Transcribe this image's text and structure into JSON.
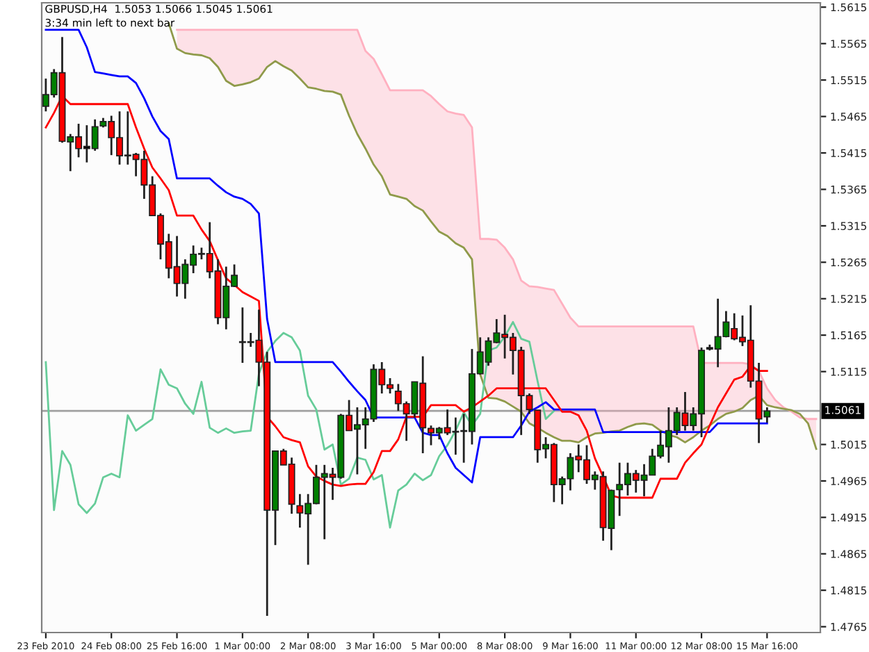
{
  "chart_data": {
    "type": "candlestick",
    "title": "GBPUSD,H4  1.5053 1.5066 1.5045 1.5061",
    "subtitle": "3:34 min left to next bar",
    "categories": [
      "23 Feb 2010",
      null,
      null,
      null,
      null,
      null,
      null,
      null,
      "24 Feb 08:00",
      null,
      null,
      null,
      null,
      null,
      null,
      null,
      "25 Feb 16:00",
      null,
      null,
      null,
      null,
      null,
      null,
      null,
      "1 Mar 00:00",
      null,
      null,
      null,
      null,
      null,
      null,
      null,
      "2 Mar 08:00",
      null,
      null,
      null,
      null,
      null,
      null,
      null,
      "3 Mar 16:00",
      null,
      null,
      null,
      null,
      null,
      null,
      null,
      "5 Mar 00:00",
      null,
      null,
      null,
      null,
      null,
      null,
      null,
      "8 Mar 08:00",
      null,
      null,
      null,
      null,
      null,
      null,
      null,
      "9 Mar 16:00",
      null,
      null,
      null,
      null,
      null,
      null,
      null,
      "11 Mar 00:00",
      null,
      null,
      null,
      null,
      null,
      null,
      null,
      "12 Mar 08:00",
      null,
      null,
      null,
      null,
      null,
      null,
      null,
      "15 Mar 16:00",
      null,
      null,
      null,
      null,
      null,
      null
    ],
    "ylim": [
      1.4757,
      1.5621
    ],
    "yticks": [
      1.4765,
      1.4815,
      1.4865,
      1.4915,
      1.4965,
      1.5015,
      1.5115,
      1.5165,
      1.5215,
      1.5265,
      1.5315,
      1.5365,
      1.5415,
      1.5465,
      1.5515,
      1.5565,
      1.5615
    ],
    "ref_lines": [
      {
        "axis": "y",
        "value": 1.5061,
        "label": "1.5061",
        "color": "#a0a0a0"
      }
    ],
    "series": [
      {
        "type": "line",
        "color": "#ffb0c0",
        "values": [
          null,
          null,
          null,
          null,
          null,
          null,
          null,
          null,
          null,
          null,
          null,
          null,
          null,
          null,
          null,
          null,
          1.5584,
          1.5584,
          1.5584,
          1.5584,
          1.5584,
          1.5584,
          1.5584,
          1.5584,
          1.5584,
          1.5584,
          1.5584,
          1.5584,
          1.5584,
          1.5584,
          1.5584,
          1.5584,
          1.5584,
          1.5584,
          1.5584,
          1.5584,
          1.5584,
          1.5584,
          1.5584,
          1.5555,
          1.5544,
          1.5523,
          1.5501,
          1.5501,
          1.5501,
          1.5501,
          1.5501,
          1.5493,
          1.5482,
          1.5472,
          1.5469,
          1.5467,
          1.545,
          1.5297,
          1.5297,
          1.5296,
          1.5285,
          1.5269,
          1.524,
          1.5232,
          1.5231,
          1.5229,
          1.5227,
          1.5208,
          1.5189,
          1.5177,
          1.5177,
          1.5177,
          1.5177,
          1.5177,
          1.5177,
          1.5177,
          1.5177,
          1.5177,
          1.5177,
          1.5177,
          1.5177,
          1.5177,
          1.5177,
          1.5177,
          1.5127,
          1.5127,
          1.5127,
          1.5127,
          1.5127,
          1.5127,
          1.5125,
          1.5116,
          1.5092,
          1.5076,
          1.5066,
          1.506,
          1.5052,
          1.505,
          1.505
        ],
        "lower": [
          null,
          null,
          null,
          null,
          null,
          null,
          null,
          null,
          null,
          null,
          null,
          null,
          null,
          null,
          null,
          null,
          1.5558,
          1.5552,
          1.555,
          1.5549,
          1.5545,
          1.5533,
          1.5514,
          1.5507,
          1.5509,
          1.5512,
          1.5517,
          1.5533,
          1.5541,
          1.5534,
          1.5528,
          1.5517,
          1.5505,
          1.5503,
          1.55,
          1.5499,
          1.5495,
          1.5466,
          1.5441,
          1.5421,
          1.5399,
          1.5383,
          1.5358,
          1.5355,
          1.5352,
          1.5342,
          1.5336,
          1.5321,
          1.5307,
          1.5301,
          1.5291,
          1.5285,
          1.5269,
          1.5111,
          1.5079,
          1.5078,
          1.5074,
          1.5067,
          1.506,
          1.5044,
          1.5038,
          1.5031,
          1.5025,
          1.502,
          1.502,
          1.5018,
          1.5025,
          1.503,
          1.5031,
          1.5033,
          1.5034,
          1.5039,
          1.5043,
          1.5044,
          1.5042,
          1.5034,
          1.5028,
          1.5025,
          1.5018,
          1.5025,
          1.5034,
          1.5041,
          1.505,
          1.5057,
          1.506,
          1.5065,
          1.5076,
          1.5082,
          1.5069,
          1.5066,
          1.5064,
          1.5062,
          1.5057,
          1.5044,
          1.5009
        ],
        "upper": [
          null,
          null,
          null,
          null,
          null,
          null,
          null,
          null,
          null,
          null,
          null,
          null,
          null,
          null,
          null,
          null,
          1.5584,
          1.5584,
          1.5584,
          1.5584,
          1.5584,
          1.5584,
          1.5584,
          1.5584,
          1.5584,
          1.5584,
          1.5584,
          1.5584,
          1.5584,
          1.5584,
          1.5584,
          1.5584,
          1.5584,
          1.5584,
          1.5584,
          1.5584,
          1.5584,
          1.5584,
          1.5584,
          1.5555,
          1.5544,
          1.5523,
          1.5501,
          1.5501,
          1.5501,
          1.5501,
          1.5501,
          1.5493,
          1.5482,
          1.5472,
          1.5469,
          1.5467,
          1.545,
          1.5297,
          1.5297,
          1.5296,
          1.5285,
          1.5269,
          1.524,
          1.5232,
          1.5231,
          1.5229,
          1.5227,
          1.5208,
          1.5189,
          1.5177,
          1.5177,
          1.5177,
          1.5177,
          1.5177,
          1.5177,
          1.5177,
          1.5177,
          1.5177,
          1.5177,
          1.5177,
          1.5177,
          1.5177,
          1.5177,
          1.5177,
          1.5127,
          1.5127,
          1.5127,
          1.5127,
          1.5127,
          1.5127,
          1.5125,
          1.5116,
          1.5092,
          1.5076,
          1.5066,
          1.506,
          1.5052,
          1.505,
          1.505
        ]
      },
      {
        "type": "line",
        "color": "#8f9a4a",
        "values": [
          null,
          null,
          null,
          null,
          null,
          null,
          null,
          null,
          null,
          null,
          null,
          null,
          null,
          null,
          null,
          1.5593,
          1.5558,
          1.5552,
          1.555,
          1.5549,
          1.5545,
          1.5533,
          1.5514,
          1.5507,
          1.5509,
          1.5512,
          1.5517,
          1.5533,
          1.5541,
          1.5534,
          1.5528,
          1.5517,
          1.5505,
          1.5503,
          1.55,
          1.5499,
          1.5495,
          1.5466,
          1.5441,
          1.5421,
          1.5399,
          1.5383,
          1.5358,
          1.5355,
          1.5352,
          1.5342,
          1.5336,
          1.5321,
          1.5307,
          1.5301,
          1.5291,
          1.5285,
          1.5269,
          1.5111,
          1.5079,
          1.5078,
          1.5074,
          1.5067,
          1.506,
          1.5044,
          1.5038,
          1.5031,
          1.5025,
          1.502,
          1.502,
          1.5018,
          1.5025,
          1.503,
          1.5031,
          1.5033,
          1.5034,
          1.5039,
          1.5043,
          1.5044,
          1.5042,
          1.5034,
          1.5028,
          1.5025,
          1.5018,
          1.5025,
          1.5034,
          1.5041,
          1.505,
          1.5057,
          1.506,
          1.5065,
          1.5076,
          1.5082,
          1.5069,
          1.5066,
          1.5064,
          1.5062,
          1.5057,
          1.5044,
          1.5009
        ]
      },
      {
        "type": "line",
        "color": "#66cc99",
        "values": [
          1.5128,
          1.4925,
          1.5006,
          1.4987,
          1.4933,
          1.4921,
          1.4934,
          1.497,
          1.4975,
          1.497,
          1.5055,
          1.5034,
          1.5042,
          1.505,
          1.5118,
          1.5097,
          1.5092,
          1.5071,
          1.5057,
          1.5101,
          1.5038,
          1.5031,
          1.5037,
          1.5031,
          1.5033,
          1.5034,
          1.5112,
          1.5142,
          1.5157,
          1.5168,
          1.5162,
          1.5144,
          1.5082,
          1.5063,
          1.5008,
          1.5015,
          1.496,
          1.4968,
          1.4997,
          1.4994,
          1.4967,
          1.4973,
          1.4901,
          1.4952,
          1.496,
          1.4975,
          1.4966,
          1.4973,
          1.4999,
          1.5014,
          1.5034,
          1.5059,
          1.5041,
          1.5057,
          1.5144,
          1.5148,
          1.5163,
          1.5183,
          1.516,
          1.5156,
          1.5102,
          1.505,
          1.5061,
          null,
          null,
          null,
          null,
          null,
          null,
          null,
          null,
          null,
          null,
          null,
          null,
          null,
          null,
          null,
          null,
          null,
          null,
          null,
          null,
          null,
          null,
          null,
          null,
          null,
          null,
          null,
          null,
          null,
          null,
          null,
          null
        ]
      },
      {
        "type": "line",
        "color": "#0000ff",
        "values": [
          1.5584,
          1.5584,
          1.5584,
          1.5584,
          1.5584,
          1.556,
          1.5526,
          1.5524,
          1.5522,
          1.552,
          1.552,
          1.5511,
          1.549,
          1.5465,
          1.5445,
          1.5434,
          1.538,
          1.538,
          1.538,
          1.538,
          1.538,
          1.537,
          1.5361,
          1.5355,
          1.5352,
          1.5345,
          1.5332,
          1.5187,
          1.5128,
          1.5128,
          1.5128,
          1.5128,
          1.5128,
          1.5128,
          1.5128,
          1.5128,
          1.5115,
          1.5101,
          1.5088,
          1.5076,
          1.5052,
          1.5052,
          1.5052,
          1.5052,
          1.5052,
          1.5052,
          1.5031,
          1.5028,
          1.5028,
          1.5003,
          1.4983,
          1.4973,
          1.4963,
          1.5025,
          1.5025,
          1.5025,
          1.5025,
          1.5025,
          1.5041,
          1.506,
          1.5066,
          1.5073,
          1.5063,
          1.5063,
          1.5063,
          1.5063,
          1.5063,
          1.5063,
          1.5032,
          1.5032,
          1.5032,
          1.5032,
          1.5032,
          1.5032,
          1.5032,
          1.5032,
          1.5032,
          1.5032,
          1.5032,
          1.5032,
          1.5032,
          1.5032,
          1.5044,
          1.5044,
          1.5044,
          1.5044,
          1.5044,
          1.5044,
          1.5044,
          null,
          null,
          null,
          null,
          null,
          null
        ]
      },
      {
        "type": "line",
        "color": "#ff0000",
        "values": [
          1.545,
          1.547,
          1.5493,
          1.5482,
          1.5482,
          1.5482,
          1.5482,
          1.5482,
          1.5482,
          1.5482,
          1.5482,
          1.545,
          1.5421,
          1.5395,
          1.538,
          1.5364,
          1.5329,
          1.5329,
          1.5329,
          1.531,
          1.5294,
          1.5268,
          1.5243,
          1.5234,
          1.5224,
          1.5218,
          1.5212,
          1.5053,
          1.504,
          1.5025,
          1.5021,
          1.5018,
          1.4985,
          1.4971,
          1.4965,
          1.496,
          1.4958,
          1.496,
          1.4961,
          1.4961,
          1.4977,
          1.5006,
          1.5006,
          1.5022,
          1.5053,
          1.5053,
          1.5053,
          1.5069,
          1.5069,
          1.5069,
          1.5069,
          1.506,
          1.5066,
          1.5074,
          1.5082,
          1.5092,
          1.5092,
          1.5092,
          1.5092,
          1.5092,
          1.5092,
          1.5092,
          1.5076,
          1.506,
          1.506,
          1.5055,
          1.5034,
          1.4996,
          1.4971,
          1.4945,
          1.4942,
          1.4942,
          1.4942,
          1.4942,
          1.4942,
          1.4968,
          1.4968,
          1.4968,
          1.499,
          1.5003,
          1.5015,
          1.5041,
          1.5066,
          1.5085,
          1.5104,
          1.5108,
          1.5123,
          1.5116,
          1.5116,
          null,
          null,
          null,
          null,
          null,
          null
        ]
      },
      {
        "type": "candlestick",
        "ohlc": [
          [
            1.5479,
            1.5517,
            1.5472,
            1.5495
          ],
          [
            1.5495,
            1.553,
            1.5491,
            1.5525
          ],
          [
            1.5525,
            1.5574,
            1.5429,
            1.5431
          ],
          [
            1.543,
            1.5441,
            1.539,
            1.5437
          ],
          [
            1.5437,
            1.5455,
            1.5409,
            1.5421
          ],
          [
            1.5421,
            1.5453,
            1.5402,
            1.5424
          ],
          [
            1.5421,
            1.5461,
            1.5418,
            1.5451
          ],
          [
            1.5452,
            1.5463,
            1.545,
            1.5458
          ],
          [
            1.5458,
            1.5466,
            1.5412,
            1.5436
          ],
          [
            1.5436,
            1.5472,
            1.5399,
            1.5411
          ],
          [
            1.5411,
            1.5472,
            1.5399,
            1.5412
          ],
          [
            1.5413,
            1.5415,
            1.5383,
            1.5406
          ],
          [
            1.5406,
            1.5418,
            1.5352,
            1.5371
          ],
          [
            1.5371,
            1.5383,
            1.5329,
            1.5329
          ],
          [
            1.5329,
            1.5332,
            1.5269,
            1.529
          ],
          [
            1.5293,
            1.5304,
            1.5243,
            1.5257
          ],
          [
            1.5259,
            1.5301,
            1.5218,
            1.5236
          ],
          [
            1.5236,
            1.5269,
            1.5215,
            1.5262
          ],
          [
            1.5261,
            1.5288,
            1.525,
            1.5276
          ],
          [
            1.5276,
            1.5285,
            1.5269,
            1.5277
          ],
          [
            1.5277,
            1.532,
            1.5243,
            1.5252
          ],
          [
            1.5253,
            1.5269,
            1.518,
            1.5189
          ],
          [
            1.5189,
            1.5259,
            1.5173,
            1.5232
          ],
          [
            1.5232,
            1.5262,
            1.5231,
            1.5247
          ],
          [
            1.5155,
            1.5203,
            1.5127,
            1.5156
          ],
          [
            1.5155,
            1.5168,
            1.5149,
            1.5156
          ],
          [
            1.5158,
            1.52,
            1.5095,
            1.5128
          ],
          [
            1.5128,
            1.5142,
            1.478,
            1.4925
          ],
          [
            1.4925,
            1.5006,
            1.4877,
            1.5006
          ],
          [
            1.5006,
            1.5009,
            1.4987,
            1.4987
          ],
          [
            1.4988,
            1.4997,
            1.492,
            1.4933
          ],
          [
            1.4931,
            1.4947,
            1.4901,
            1.4921
          ],
          [
            1.492,
            1.4947,
            1.485,
            1.4934
          ],
          [
            1.4934,
            1.4987,
            1.4933,
            1.497
          ],
          [
            1.497,
            1.4987,
            1.4885,
            1.4975
          ],
          [
            1.4974,
            1.4983,
            1.4939,
            1.497
          ],
          [
            1.497,
            1.5057,
            1.4968,
            1.5055
          ],
          [
            1.5055,
            1.5076,
            1.5034,
            1.5034
          ],
          [
            1.5036,
            1.5066,
            1.4974,
            1.5042
          ],
          [
            1.5042,
            1.5066,
            1.5009,
            1.505
          ],
          [
            1.505,
            1.5125,
            1.5046,
            1.5118
          ],
          [
            1.5118,
            1.5128,
            1.5085,
            1.5097
          ],
          [
            1.5097,
            1.5106,
            1.5085,
            1.5092
          ],
          [
            1.5088,
            1.5098,
            1.5061,
            1.5071
          ],
          [
            1.5071,
            1.5074,
            1.502,
            1.5057
          ],
          [
            1.5057,
            1.5101,
            1.5052,
            1.5101
          ],
          [
            1.5099,
            1.5136,
            1.5003,
            1.5038
          ],
          [
            1.5037,
            1.5041,
            1.5014,
            1.5031
          ],
          [
            1.5031,
            1.5039,
            1.5022,
            1.5037
          ],
          [
            1.5038,
            1.5063,
            1.5028,
            1.5031
          ],
          [
            1.5032,
            1.5052,
            1.5001,
            1.5033
          ],
          [
            1.5033,
            1.5057,
            1.499,
            1.5034
          ],
          [
            1.5033,
            1.5146,
            1.5015,
            1.5112
          ],
          [
            1.5112,
            1.5162,
            1.5111,
            1.5142
          ],
          [
            1.5128,
            1.5162,
            1.5123,
            1.5157
          ],
          [
            1.5155,
            1.5187,
            1.5154,
            1.5168
          ],
          [
            1.5166,
            1.5193,
            1.5133,
            1.5162
          ],
          [
            1.5162,
            1.5168,
            1.5111,
            1.5144
          ],
          [
            1.5144,
            1.5149,
            1.5028,
            1.5082
          ],
          [
            1.5082,
            1.5085,
            1.5057,
            1.5063
          ],
          [
            1.5062,
            1.5062,
            1.499,
            1.5008
          ],
          [
            1.5009,
            1.5025,
            1.4996,
            1.5015
          ],
          [
            1.5015,
            1.5017,
            1.4936,
            1.496
          ],
          [
            1.496,
            1.4971,
            1.4933,
            1.4968
          ],
          [
            1.4968,
            1.5003,
            1.4952,
            1.4997
          ],
          [
            1.4999,
            1.5015,
            1.4977,
            1.4994
          ],
          [
            1.4994,
            1.5014,
            1.4961,
            1.4967
          ],
          [
            1.4967,
            1.4978,
            1.4953,
            1.4973
          ],
          [
            1.4971,
            1.4978,
            1.4883,
            1.4901
          ],
          [
            1.49,
            1.4953,
            1.487,
            1.4952
          ],
          [
            1.4953,
            1.499,
            1.4917,
            1.496
          ],
          [
            1.496,
            1.499,
            1.4945,
            1.4975
          ],
          [
            1.4975,
            1.498,
            1.4949,
            1.4966
          ],
          [
            1.4966,
            1.4988,
            1.4944,
            1.4973
          ],
          [
            1.4973,
            1.5009,
            1.4973,
            1.4999
          ],
          [
            1.4999,
            1.5034,
            1.4996,
            1.5014
          ],
          [
            1.5012,
            1.5066,
            1.499,
            1.5034
          ],
          [
            1.5034,
            1.5066,
            1.5028,
            1.5059
          ],
          [
            1.5058,
            1.5087,
            1.5034,
            1.5041
          ],
          [
            1.5041,
            1.5066,
            1.5034,
            1.5057
          ],
          [
            1.5057,
            1.5148,
            1.5025,
            1.5144
          ],
          [
            1.5146,
            1.5152,
            1.5144,
            1.5148
          ],
          [
            1.5146,
            1.5215,
            1.5121,
            1.5163
          ],
          [
            1.5163,
            1.5198,
            1.5162,
            1.5183
          ],
          [
            1.5174,
            1.5195,
            1.5158,
            1.516
          ],
          [
            1.5162,
            1.5192,
            1.515,
            1.5156
          ],
          [
            1.5158,
            1.5206,
            1.5093,
            1.5102
          ],
          [
            1.5102,
            1.5127,
            1.5017,
            1.505
          ],
          [
            1.5053,
            1.5066,
            1.5045,
            1.5061
          ],
          null,
          null,
          null,
          null,
          null,
          null
        ],
        "colors": [
          "#008000",
          "#008000",
          "#ff0000",
          "#008000",
          "#ff0000",
          "#000000",
          "#008000",
          "#008000",
          "#ff0000",
          "#ff0000",
          "#000000",
          "#ff0000",
          "#ff0000",
          "#ff0000",
          "#ff0000",
          "#ff0000",
          "#ff0000",
          "#008000",
          "#008000",
          "#000000",
          "#ff0000",
          "#ff0000",
          "#008000",
          "#008000",
          "#000000",
          "#000000",
          "#ff0000",
          "#ff0000",
          "#008000",
          "#ff0000",
          "#ff0000",
          "#ff0000",
          "#008000",
          "#008000",
          "#008000",
          "#ff0000",
          "#008000",
          "#ff0000",
          "#008000",
          "#008000",
          "#008000",
          "#ff0000",
          "#ff0000",
          "#ff0000",
          "#ff0000",
          "#008000",
          "#ff0000",
          "#ff0000",
          "#008000",
          "#ff0000",
          "#000000",
          "#000000",
          "#008000",
          "#008000",
          "#008000",
          "#008000",
          "#ff0000",
          "#ff0000",
          "#ff0000",
          "#ff0000",
          "#ff0000",
          "#008000",
          "#ff0000",
          "#008000",
          "#008000",
          "#ff0000",
          "#ff0000",
          "#008000",
          "#ff0000",
          "#008000",
          "#008000",
          "#008000",
          "#ff0000",
          "#008000",
          "#008000",
          "#008000",
          "#008000",
          "#008000",
          "#ff0000",
          "#008000",
          "#008000",
          "#000000",
          "#008000",
          "#008000",
          "#ff0000",
          "#ff0000",
          "#ff0000",
          "#ff0000",
          "#008000",
          null,
          null,
          null,
          null,
          null,
          null
        ]
      }
    ]
  }
}
